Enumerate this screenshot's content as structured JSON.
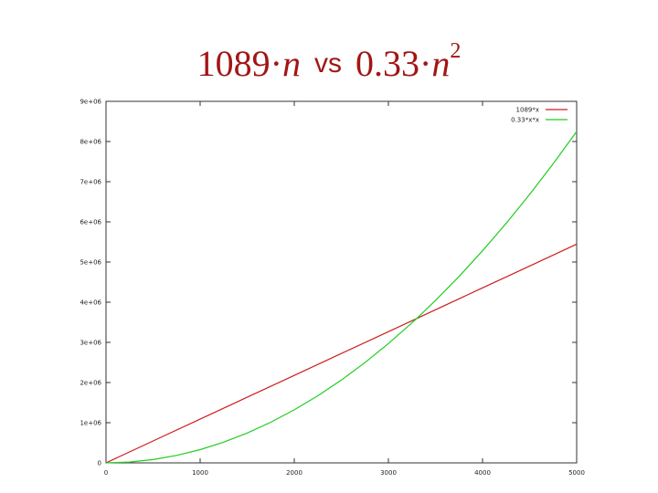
{
  "title": {
    "left_coef": "1089·",
    "left_var": "n",
    "separator": "vs",
    "right_coef": "0.33·",
    "right_var": "n",
    "right_exp": "2"
  },
  "colors": {
    "title": "#a11616",
    "series_linear": "#cc1f1f",
    "series_quadratic": "#22cc22",
    "axis": "#333333"
  },
  "chart_data": {
    "type": "line",
    "title": "",
    "xlabel": "",
    "ylabel": "",
    "xlim": [
      0,
      5000
    ],
    "ylim": [
      0,
      9000000
    ],
    "x_ticks": [
      0,
      1000,
      2000,
      3000,
      4000,
      5000
    ],
    "x_tick_labels": [
      "0",
      "1000",
      "2000",
      "3000",
      "4000",
      "5000"
    ],
    "y_ticks": [
      0,
      1000000,
      2000000,
      3000000,
      4000000,
      5000000,
      6000000,
      7000000,
      8000000,
      9000000
    ],
    "y_tick_labels": [
      "0",
      "1e+06",
      "2e+06",
      "3e+06",
      "4e+06",
      "5e+06",
      "6e+06",
      "7e+06",
      "8e+06",
      "9e+06"
    ],
    "grid": false,
    "legend_position": "top-right",
    "series": [
      {
        "name": "1089*x",
        "color": "#cc1f1f",
        "x": [
          0,
          500,
          1000,
          1500,
          2000,
          2500,
          3000,
          3300,
          3500,
          4000,
          4500,
          5000
        ],
        "y": [
          0,
          544500,
          1089000,
          1633500,
          2178000,
          2722500,
          3267000,
          3593700,
          3811500,
          4356000,
          4900500,
          5445000
        ]
      },
      {
        "name": "0.33*x*x",
        "color": "#22cc22",
        "x": [
          0,
          250,
          500,
          750,
          1000,
          1250,
          1500,
          1750,
          2000,
          2250,
          2500,
          2750,
          3000,
          3250,
          3300,
          3500,
          3750,
          4000,
          4250,
          4500,
          4750,
          5000
        ],
        "y": [
          0,
          20625,
          82500,
          185625,
          330000,
          515625,
          742500,
          1010625,
          1320000,
          1670625,
          2062500,
          2495625,
          2970000,
          3485625,
          3593700,
          4042500,
          4640625,
          5280000,
          5960625,
          6682500,
          7445625,
          8250000
        ]
      }
    ]
  }
}
